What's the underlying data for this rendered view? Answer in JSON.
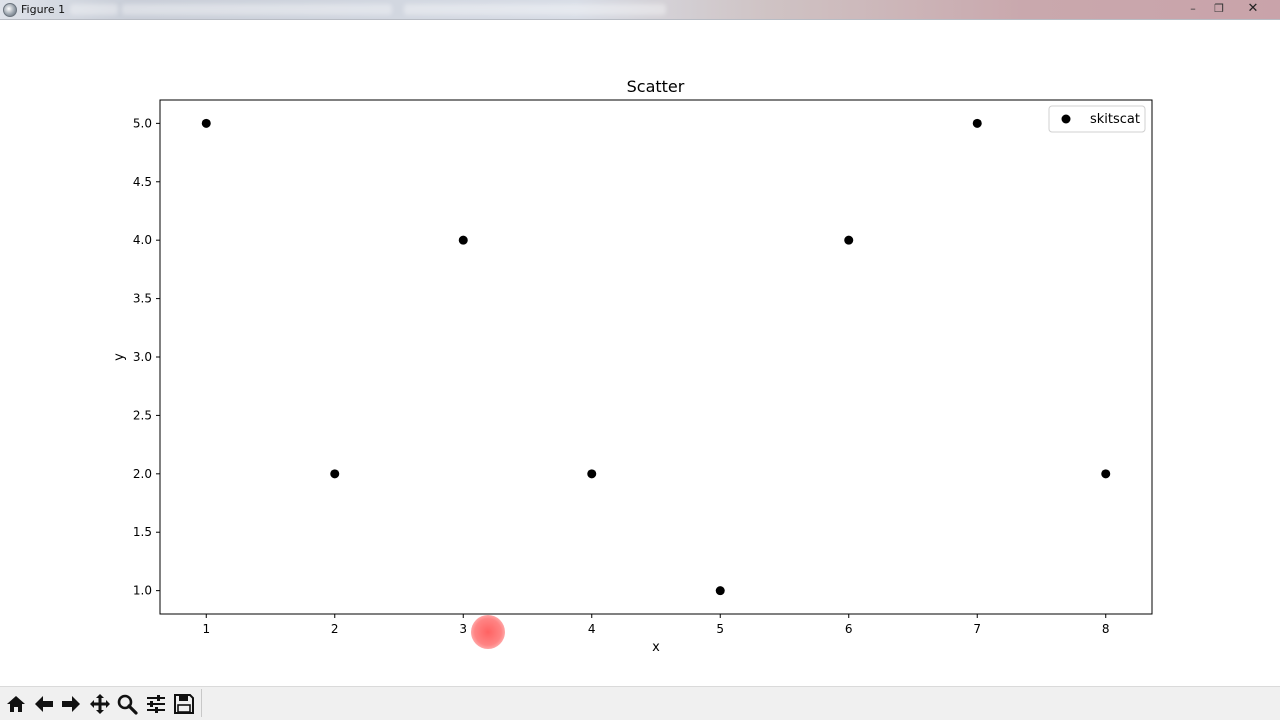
{
  "window": {
    "title": "Figure 1",
    "controls": {
      "minimize": "–",
      "maximize": "❐",
      "close": "✕"
    }
  },
  "toolbar": {
    "buttons": [
      {
        "name": "home-button",
        "icon": "home-icon"
      },
      {
        "name": "back-button",
        "icon": "arrow-left-icon"
      },
      {
        "name": "forward-button",
        "icon": "arrow-right-icon"
      },
      {
        "name": "pan-button",
        "icon": "move-icon"
      },
      {
        "name": "zoom-button",
        "icon": "magnifier-icon"
      },
      {
        "name": "configure-subplots-button",
        "icon": "sliders-icon"
      },
      {
        "name": "save-button",
        "icon": "floppy-disk-icon"
      }
    ]
  },
  "chart_data": {
    "type": "scatter",
    "title": "Scatter",
    "xlabel": "x",
    "ylabel": "y",
    "xlim": [
      0.64,
      8.36
    ],
    "ylim": [
      0.8,
      5.2
    ],
    "xticks": [
      1,
      2,
      3,
      4,
      5,
      6,
      7,
      8
    ],
    "yticks": [
      1.0,
      1.5,
      2.0,
      2.5,
      3.0,
      3.5,
      4.0,
      4.5,
      5.0
    ],
    "grid": false,
    "legend_placement": "top-right",
    "series": [
      {
        "name": "skitscat",
        "color": "#000000",
        "marker": "circle",
        "x": [
          1,
          2,
          3,
          4,
          5,
          6,
          7,
          8
        ],
        "y": [
          5,
          2,
          4,
          2,
          1,
          4,
          5,
          2
        ]
      }
    ]
  }
}
